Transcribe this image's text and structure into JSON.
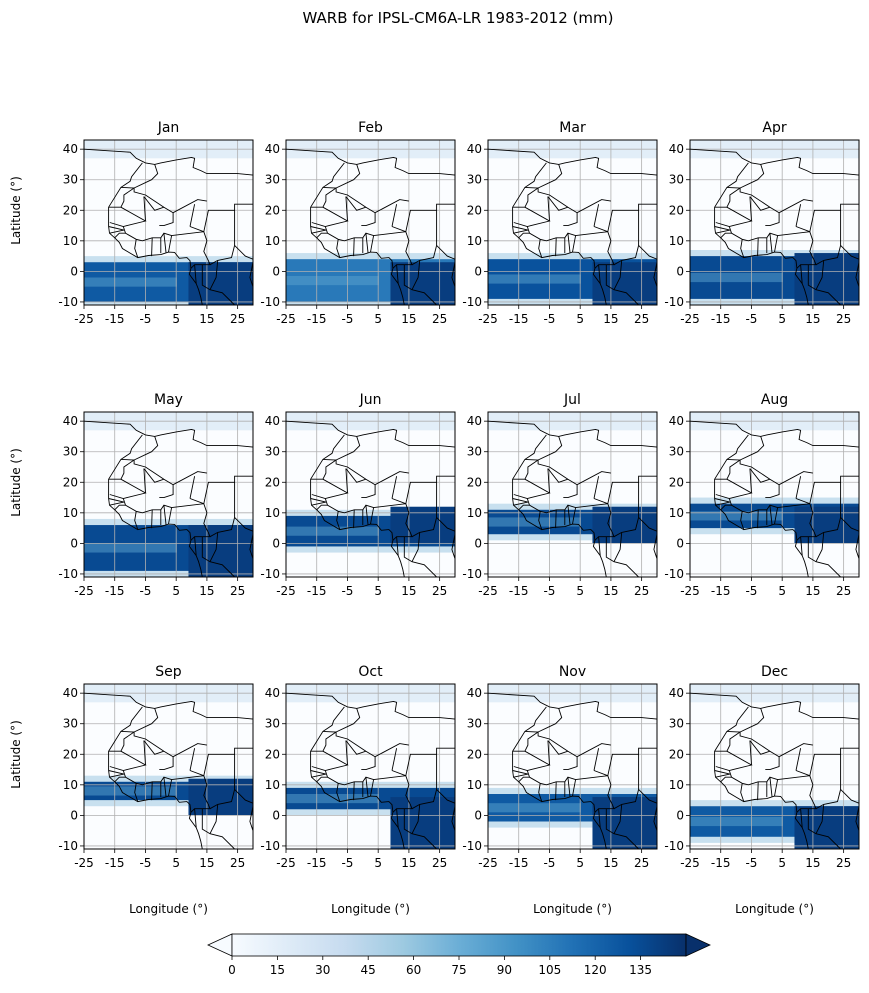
{
  "chart_data": {
    "type": "heatmap",
    "title": "WARB for IPSL-CM6A-LR 1983-2012 (mm)",
    "colormap": "Blues",
    "grid": true,
    "panels": [
      {
        "month": "Jan",
        "band_lat": [
          -10,
          3
        ],
        "band_peak": 140,
        "land_rain": "south"
      },
      {
        "month": "Feb",
        "band_lat": [
          -10,
          4
        ],
        "band_peak": 120,
        "land_rain": "south"
      },
      {
        "month": "Mar",
        "band_lat": [
          -9,
          4
        ],
        "band_peak": 145,
        "land_rain": "south"
      },
      {
        "month": "Apr",
        "band_lat": [
          -9,
          5
        ],
        "band_peak": 150,
        "land_rain": "equator"
      },
      {
        "month": "May",
        "band_lat": [
          -9,
          6
        ],
        "band_peak": 150,
        "land_rain": "equator"
      },
      {
        "month": "Jun",
        "band_lat": [
          -1,
          9
        ],
        "band_peak": 150,
        "land_rain": "sahel"
      },
      {
        "month": "Jul",
        "band_lat": [
          3,
          11
        ],
        "band_peak": 150,
        "land_rain": "sahel"
      },
      {
        "month": "Aug",
        "band_lat": [
          5,
          13
        ],
        "band_peak": 150,
        "land_rain": "sahel"
      },
      {
        "month": "Sep",
        "band_lat": [
          5,
          11
        ],
        "band_peak": 150,
        "land_rain": "sahel"
      },
      {
        "month": "Oct",
        "band_lat": [
          2,
          9
        ],
        "band_peak": 150,
        "land_rain": "equator"
      },
      {
        "month": "Nov",
        "band_lat": [
          -2,
          7
        ],
        "band_peak": 140,
        "land_rain": "equator"
      },
      {
        "month": "Dec",
        "band_lat": [
          -7,
          3
        ],
        "band_peak": 140,
        "land_rain": "south"
      }
    ],
    "x_ticks": [
      "-25",
      "-15",
      "-5",
      "5",
      "15",
      "25"
    ],
    "y_ticks": [
      "40",
      "30",
      "20",
      "10",
      "0",
      "-10"
    ],
    "xlim": [
      -25,
      30
    ],
    "ylim": [
      -11,
      43
    ],
    "ylabel": "Latitude (°)",
    "xlabel": "Longitude (°)",
    "colorbar": {
      "ticks": [
        "0",
        "15",
        "30",
        "45",
        "60",
        "75",
        "90",
        "105",
        "120",
        "135"
      ],
      "range": [
        0,
        150
      ],
      "extend": "both"
    }
  }
}
